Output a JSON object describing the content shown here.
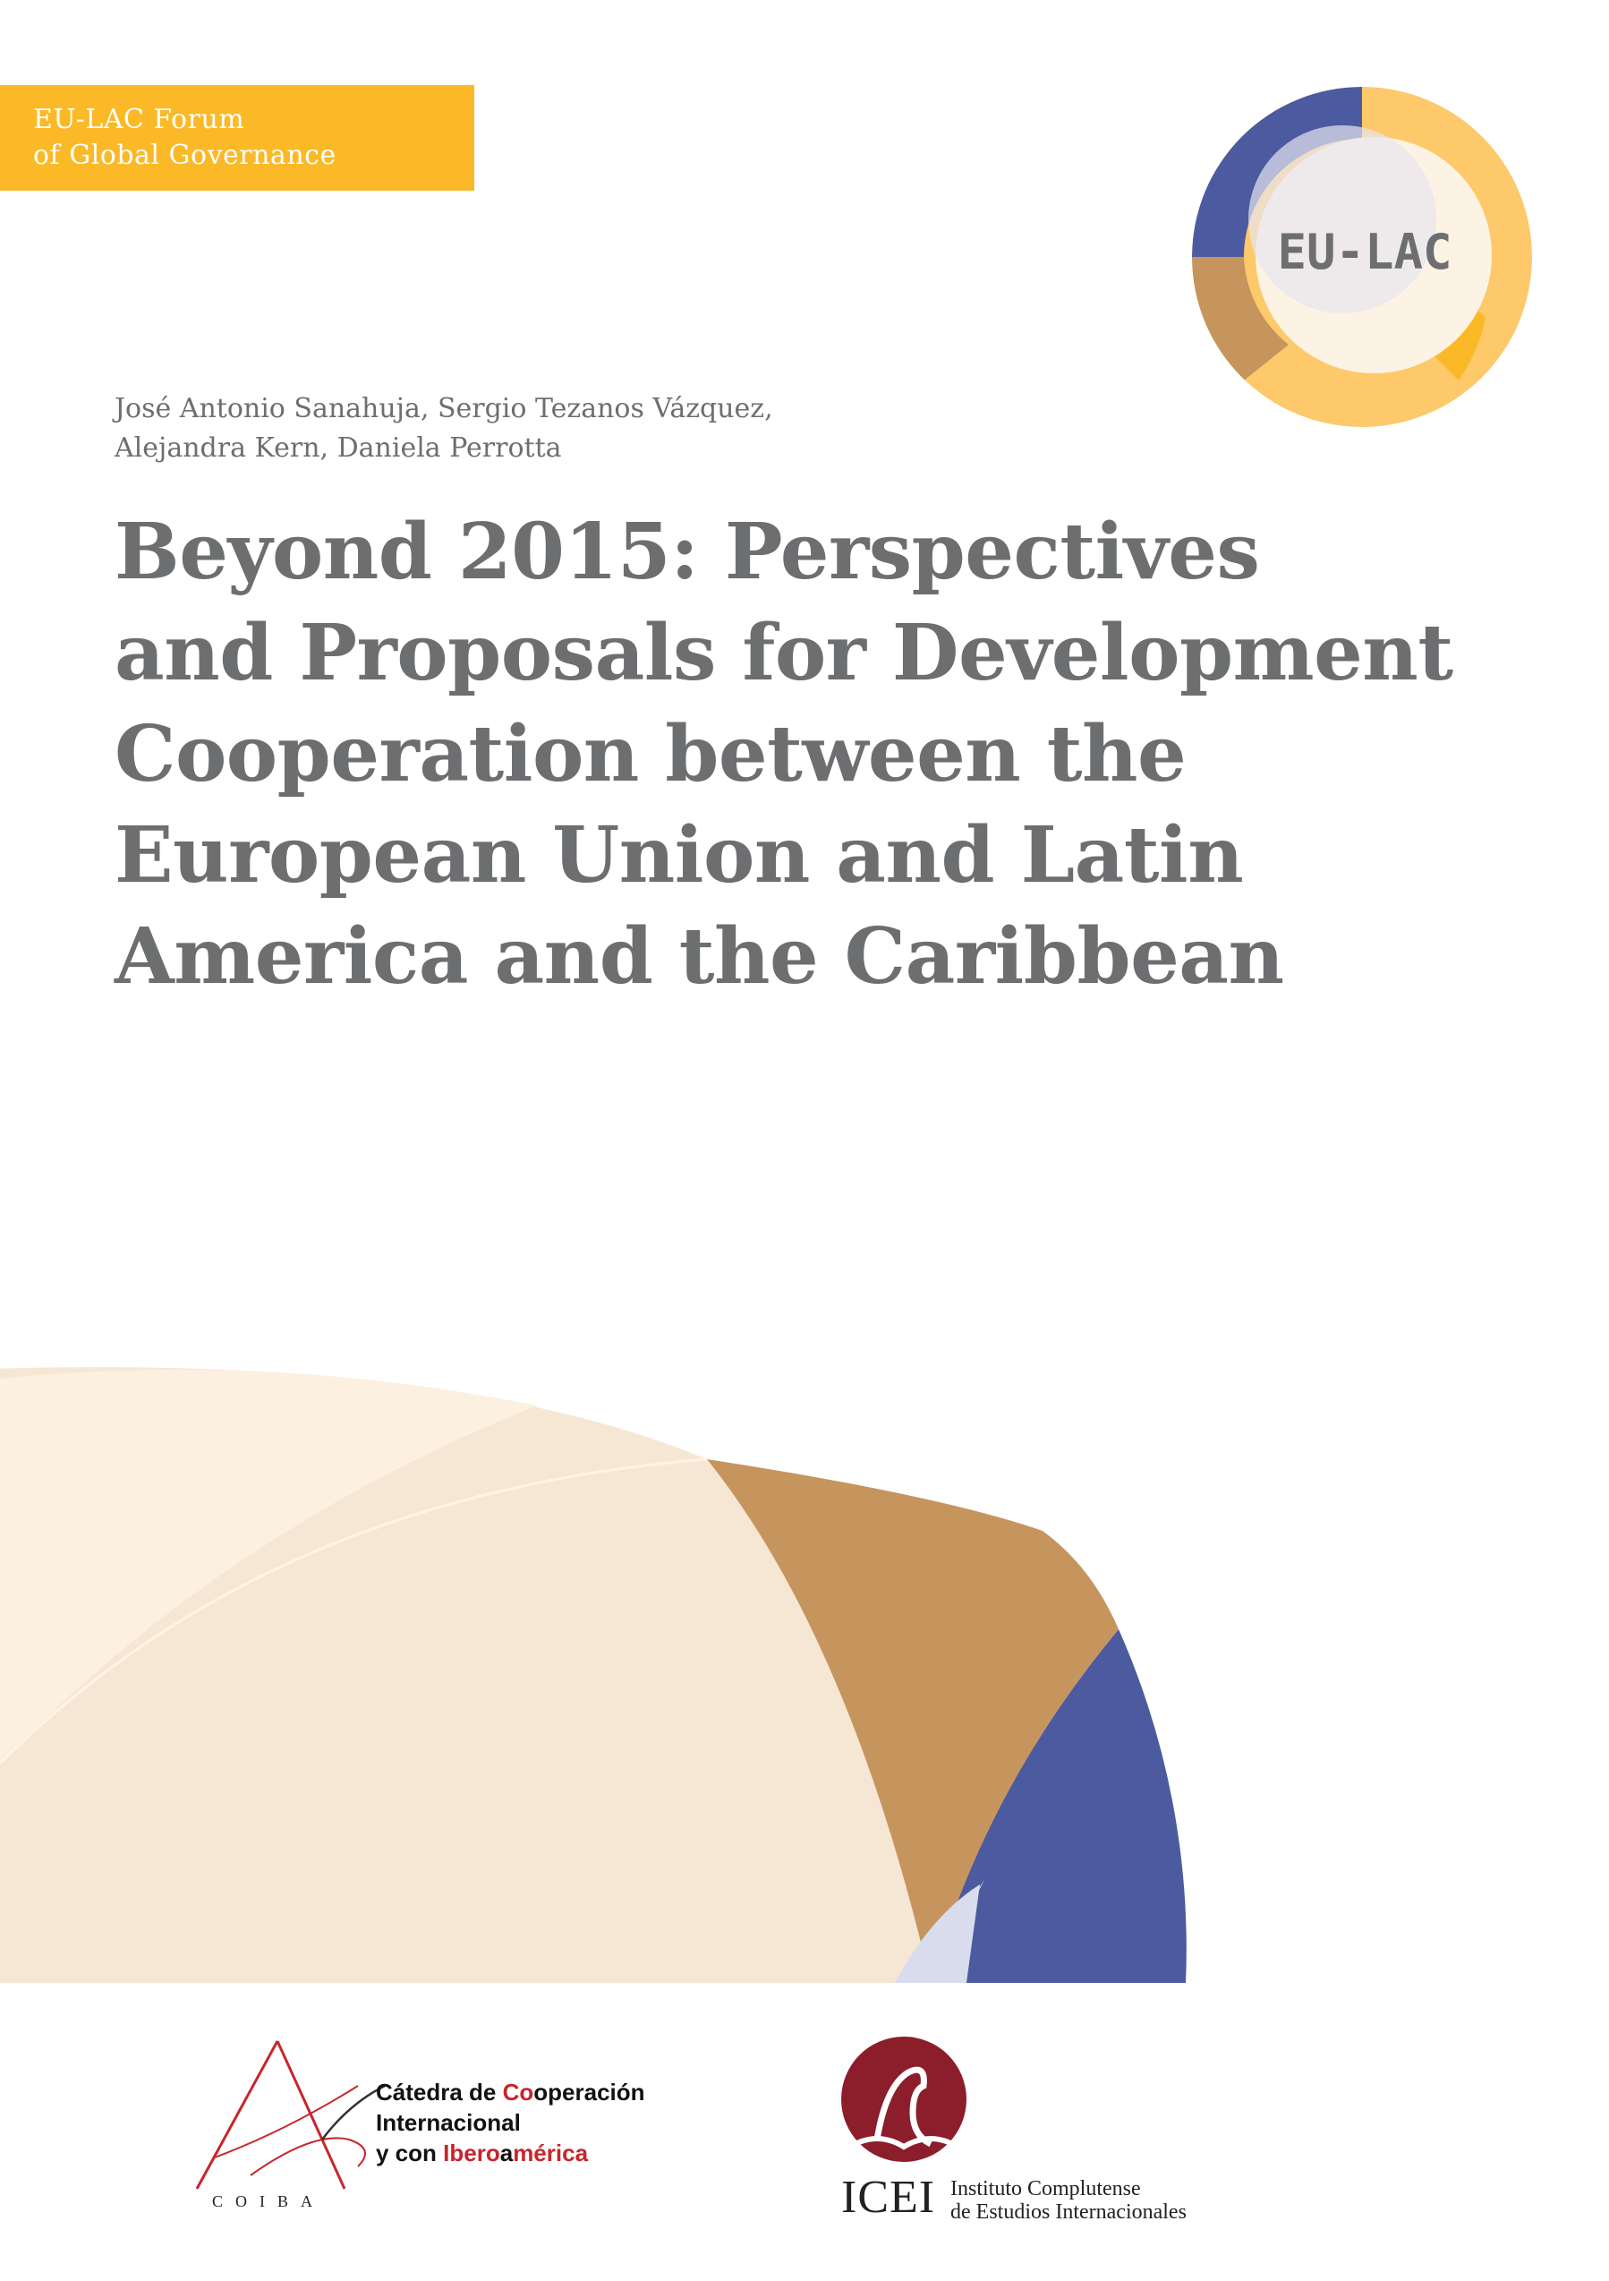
{
  "banner": {
    "line1": "EU-LAC Forum",
    "line2": "of Global Governance"
  },
  "logo": {
    "text": "EU-LAC"
  },
  "authors": {
    "line1": "José Antonio Sanahuja, Sergio Tezanos Vázquez,",
    "line2": "Alejandra Kern, Daniela Perrotta"
  },
  "title": {
    "lines": [
      "Beyond 2015: Perspectives",
      "and Proposals for Development",
      "Cooperation between the",
      "European Union and Latin",
      "America and the Caribbean"
    ]
  },
  "partners": {
    "coiba": {
      "mark": "COIBA",
      "line1_a": "Cátedra de ",
      "line1_b": "Co",
      "line1_c": "operación",
      "line2": "Internacional",
      "line3_a": "y con ",
      "line3_b": "Ibero",
      "line3_c": "a",
      "line3_d": "mérica"
    },
    "icei": {
      "acronym": "ICEI",
      "name_line1": "Instituto Complutense",
      "name_line2": "de Estudios Internacionales"
    }
  },
  "colors": {
    "yellow": "#fbb928",
    "light_yellow": "#fdc96a",
    "cream": "#f6e7d4",
    "brown": "#c6955e",
    "blue": "#4c5aa0",
    "lavender": "#d8dced",
    "title_gray": "#6d6e70"
  }
}
